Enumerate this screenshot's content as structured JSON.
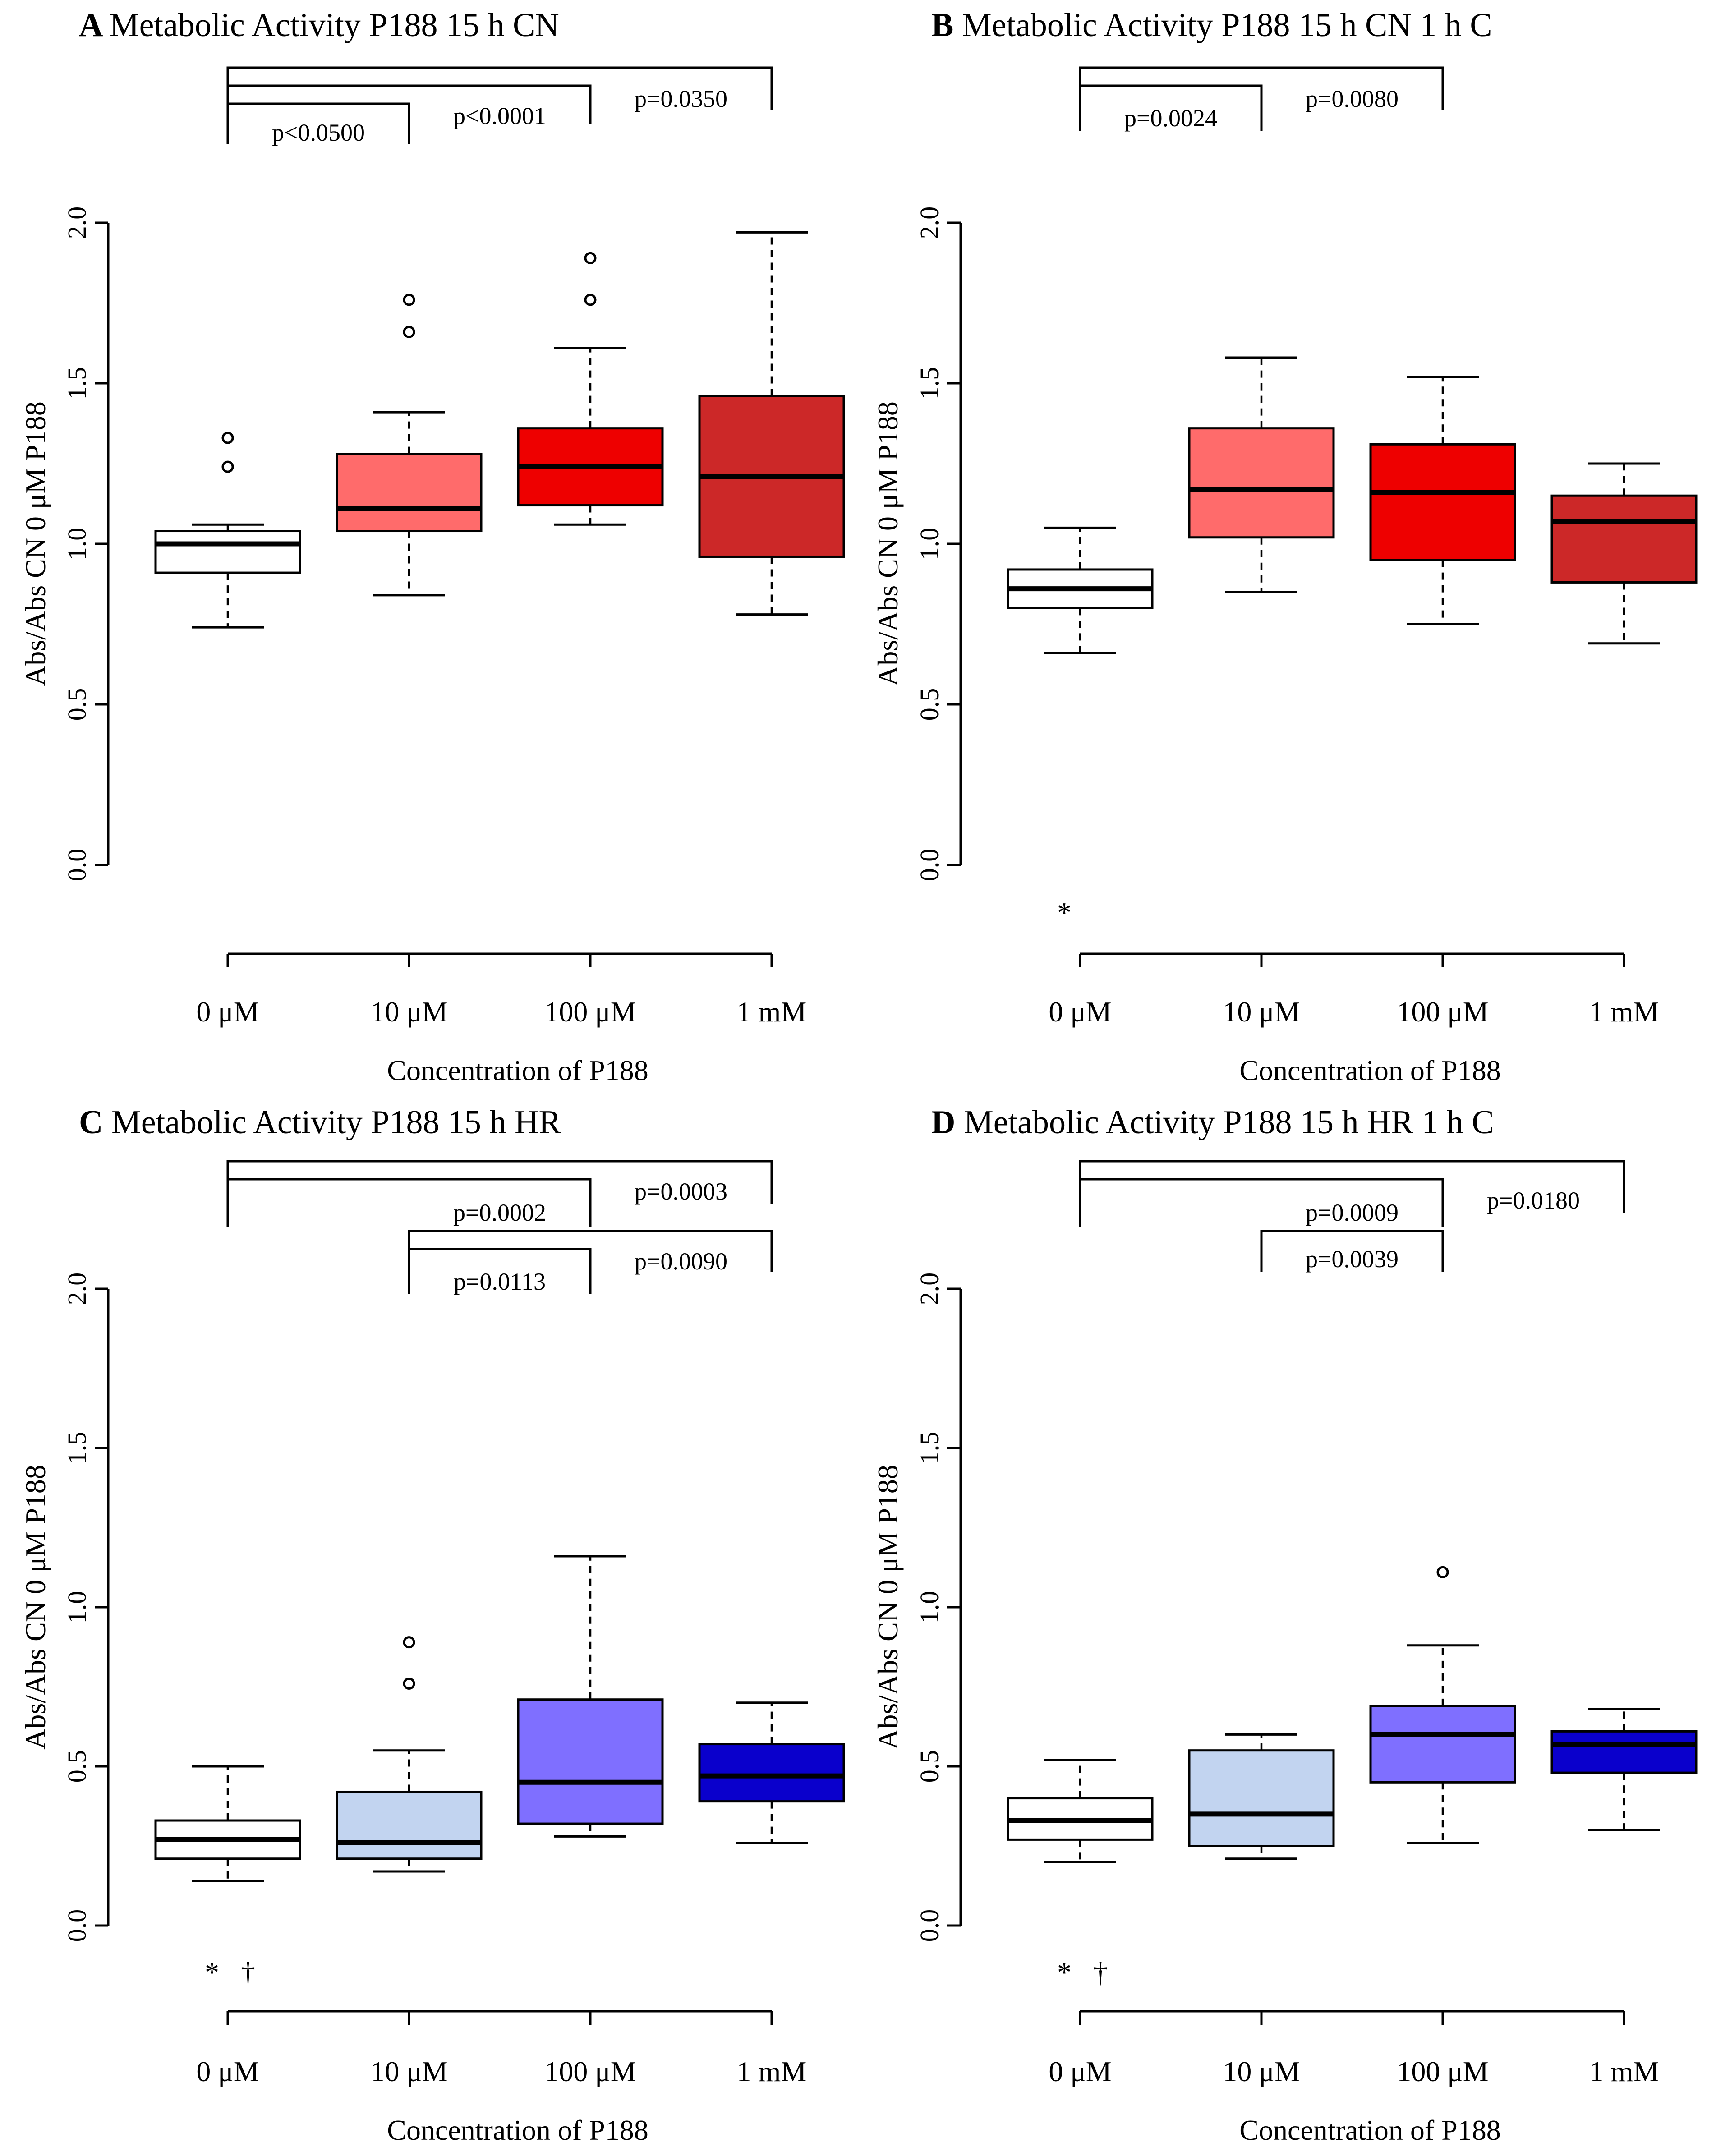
{
  "chart_data": [
    {
      "type": "box",
      "panel": "A",
      "title": "Metabolic Activity P188 15 h CN",
      "xlabel": "Concentration of P188",
      "ylabel": "Abs/Abs CN 0 μM P188",
      "ylim": [
        0,
        2
      ],
      "yticks": [
        "0.0",
        "0.5",
        "1.0",
        "1.5",
        "2.0"
      ],
      "categories": [
        "0 μM",
        "10 μM",
        "100 μM",
        "1 mM"
      ],
      "boxes": [
        {
          "min": 0.74,
          "q1": 0.91,
          "median": 1.0,
          "q3": 1.04,
          "max": 1.06,
          "outliers": [
            1.24,
            1.33
          ],
          "color": "#ffffff"
        },
        {
          "min": 0.84,
          "q1": 1.04,
          "median": 1.11,
          "q3": 1.28,
          "max": 1.41,
          "outliers": [
            1.66,
            1.76
          ],
          "color": "#ff6b6b"
        },
        {
          "min": 1.06,
          "q1": 1.12,
          "median": 1.24,
          "q3": 1.36,
          "max": 1.61,
          "outliers": [
            1.76,
            1.89
          ],
          "color": "#ee0000"
        },
        {
          "min": 0.78,
          "q1": 0.96,
          "median": 1.21,
          "q3": 1.46,
          "max": 1.97,
          "outliers": [],
          "color": "#cc2828"
        }
      ],
      "comparisons": [
        {
          "from": 0,
          "to": 1,
          "label": "p<0.0500"
        },
        {
          "from": 0,
          "to": 2,
          "label": "p<0.0001"
        },
        {
          "from": 0,
          "to": 3,
          "label": "p=0.0350"
        }
      ],
      "markers": []
    },
    {
      "type": "box",
      "panel": "B",
      "title": "Metabolic Activity P188 15 h CN 1 h C",
      "xlabel": "Concentration of P188",
      "ylabel": "Abs/Abs CN 0 μM P188",
      "ylim": [
        0,
        2
      ],
      "yticks": [
        "0.0",
        "0.5",
        "1.0",
        "1.5",
        "2.0"
      ],
      "categories": [
        "0 μM",
        "10 μM",
        "100 μM",
        "1 mM"
      ],
      "boxes": [
        {
          "min": 0.66,
          "q1": 0.8,
          "median": 0.86,
          "q3": 0.92,
          "max": 1.05,
          "outliers": [],
          "color": "#ffffff"
        },
        {
          "min": 0.85,
          "q1": 1.02,
          "median": 1.17,
          "q3": 1.36,
          "max": 1.58,
          "outliers": [],
          "color": "#ff6b6b"
        },
        {
          "min": 0.75,
          "q1": 0.95,
          "median": 1.16,
          "q3": 1.31,
          "max": 1.52,
          "outliers": [],
          "color": "#ee0000"
        },
        {
          "min": 0.69,
          "q1": 0.88,
          "median": 1.07,
          "q3": 1.15,
          "max": 1.25,
          "outliers": [],
          "color": "#cc2828"
        }
      ],
      "comparisons": [
        {
          "from": 0,
          "to": 1,
          "label": "p=0.0024"
        },
        {
          "from": 0,
          "to": 2,
          "label": "p=0.0080"
        }
      ],
      "markers": [
        "*"
      ]
    },
    {
      "type": "box",
      "panel": "C",
      "title": "Metabolic Activity P188 15 h HR",
      "xlabel": "Concentration of P188",
      "ylabel": "Abs/Abs CN 0 μM P188",
      "ylim": [
        0,
        2
      ],
      "yticks": [
        "0.0",
        "0.5",
        "1.0",
        "1.5",
        "2.0"
      ],
      "categories": [
        "0 μM",
        "10 μM",
        "100 μM",
        "1 mM"
      ],
      "boxes": [
        {
          "min": 0.14,
          "q1": 0.21,
          "median": 0.27,
          "q3": 0.33,
          "max": 0.5,
          "outliers": [],
          "color": "#ffffff"
        },
        {
          "min": 0.17,
          "q1": 0.21,
          "median": 0.26,
          "q3": 0.42,
          "max": 0.55,
          "outliers": [
            0.76,
            0.89
          ],
          "color": "#c2d4f0"
        },
        {
          "min": 0.28,
          "q1": 0.32,
          "median": 0.45,
          "q3": 0.71,
          "max": 1.16,
          "outliers": [],
          "color": "#7f6fff"
        },
        {
          "min": 0.26,
          "q1": 0.39,
          "median": 0.47,
          "q3": 0.57,
          "max": 0.7,
          "outliers": [],
          "color": "#0a00cc"
        }
      ],
      "comparisons": [
        {
          "from": 0,
          "to": 2,
          "label": "p=0.0002"
        },
        {
          "from": 0,
          "to": 3,
          "label": "p=0.0003"
        },
        {
          "from": 1,
          "to": 2,
          "label": "p=0.0113"
        },
        {
          "from": 1,
          "to": 3,
          "label": "p=0.0090"
        }
      ],
      "markers": [
        "*",
        "†"
      ]
    },
    {
      "type": "box",
      "panel": "D",
      "title": "Metabolic Activity P188 15 h HR 1 h C",
      "xlabel": "Concentration of P188",
      "ylabel": "Abs/Abs CN 0 μM P188",
      "ylim": [
        0,
        2
      ],
      "yticks": [
        "0.0",
        "0.5",
        "1.0",
        "1.5",
        "2.0"
      ],
      "categories": [
        "0 μM",
        "10 μM",
        "100 μM",
        "1 mM"
      ],
      "boxes": [
        {
          "min": 0.2,
          "q1": 0.27,
          "median": 0.33,
          "q3": 0.4,
          "max": 0.52,
          "outliers": [],
          "color": "#ffffff"
        },
        {
          "min": 0.21,
          "q1": 0.25,
          "median": 0.35,
          "q3": 0.55,
          "max": 0.6,
          "outliers": [],
          "color": "#c2d4f0"
        },
        {
          "min": 0.26,
          "q1": 0.45,
          "median": 0.6,
          "q3": 0.69,
          "max": 0.88,
          "outliers": [
            1.11
          ],
          "color": "#7f6fff"
        },
        {
          "min": 0.3,
          "q1": 0.48,
          "median": 0.57,
          "q3": 0.61,
          "max": 0.68,
          "outliers": [],
          "color": "#0a00cc"
        }
      ],
      "comparisons": [
        {
          "from": 0,
          "to": 2,
          "label": "p=0.0009"
        },
        {
          "from": 0,
          "to": 3,
          "label": "p=0.0180"
        },
        {
          "from": 1,
          "to": 2,
          "label": "p=0.0039"
        }
      ],
      "markers": [
        "*",
        "†"
      ]
    }
  ]
}
